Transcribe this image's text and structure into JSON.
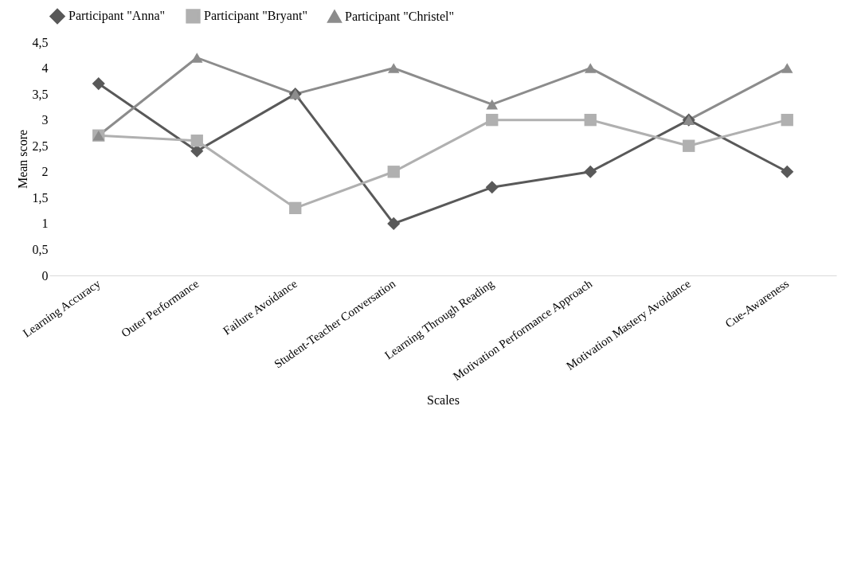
{
  "chart_data": {
    "type": "line",
    "xlabel": "Scales",
    "ylabel": "Mean score",
    "categories": [
      "Learning Accuracy",
      "Outer Performance",
      "Failure Avoidance",
      "Student-Teacher Conversation",
      "Learning Through Reading",
      "Motivation Performance Approach",
      "Motivation Mastery Avoidance",
      "Cue-Awareness"
    ],
    "series": [
      {
        "name": "Participant \"Anna\"",
        "color": "#595959",
        "marker": "diamond",
        "values": [
          3.7,
          2.4,
          3.5,
          1,
          1.7,
          2,
          3,
          2
        ]
      },
      {
        "name": "Participant \"Bryant\"",
        "color": "#b0b0b0",
        "marker": "square",
        "values": [
          2.7,
          2.6,
          1.3,
          2,
          3,
          3,
          2.5,
          3
        ]
      },
      {
        "name": "Participant \"Christel\"",
        "color": "#8c8c8c",
        "marker": "triangle",
        "values": [
          2.7,
          4.2,
          3.5,
          4,
          3.3,
          4,
          3,
          4
        ]
      }
    ],
    "ylim": [
      0,
      4.5
    ],
    "yticks": [
      0,
      {
        "value": 0.5,
        "label": "0,5"
      },
      1,
      {
        "value": 1.5,
        "label": "1,5"
      },
      2,
      {
        "value": 2.5,
        "label": "2,5"
      },
      3,
      {
        "value": 3.5,
        "label": "3,5"
      },
      4,
      {
        "value": 4.5,
        "label": "4,5"
      }
    ],
    "grid": false,
    "legend": "top",
    "line_style": "solid"
  }
}
